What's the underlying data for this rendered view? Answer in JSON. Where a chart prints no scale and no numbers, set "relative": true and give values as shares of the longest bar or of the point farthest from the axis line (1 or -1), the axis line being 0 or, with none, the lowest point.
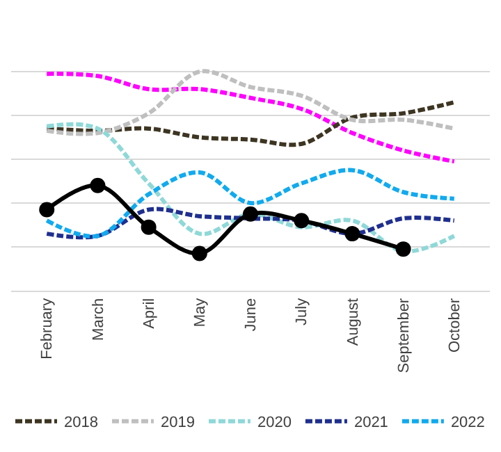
{
  "chart_data": {
    "type": "line",
    "relative": true,
    "grid": "y",
    "legend": "bottom",
    "categories": [
      "February",
      "March",
      "April",
      "May",
      "June",
      "July",
      "August",
      "September",
      "October"
    ],
    "series": [
      {
        "color": "#ff00ff",
        "line_style": "dashed",
        "marker": "none",
        "values": [
          0.99,
          0.98,
          0.92,
          0.92,
          0.88,
          0.83,
          0.72,
          0.64,
          0.59
        ]
      },
      {
        "name": "2018",
        "color": "#3d3522",
        "line_style": "dashed",
        "marker": "none",
        "values": [
          0.74,
          0.73,
          0.74,
          0.7,
          0.69,
          0.67,
          0.79,
          0.81,
          0.86
        ]
      },
      {
        "name": "2019",
        "color": "#bfbfbf",
        "line_style": "dashed",
        "marker": "none",
        "values": [
          0.73,
          0.72,
          0.81,
          1.0,
          0.93,
          0.89,
          0.78,
          0.78,
          0.74
        ]
      },
      {
        "name": "2020",
        "color": "#8fd8d8",
        "line_style": "dashed",
        "marker": "none",
        "values": [
          0.75,
          0.74,
          0.49,
          0.26,
          0.35,
          0.29,
          0.32,
          0.18,
          0.25
        ]
      },
      {
        "name": "2021",
        "color": "#1f2f8f",
        "line_style": "dashed",
        "marker": "none",
        "values": [
          0.26,
          0.25,
          0.37,
          0.34,
          0.33,
          0.32,
          0.26,
          0.33,
          0.32
        ]
      },
      {
        "name": "2022",
        "color": "#11aaee",
        "line_style": "dashed",
        "marker": "none",
        "values": [
          0.32,
          0.25,
          0.44,
          0.54,
          0.4,
          0.49,
          0.55,
          0.45,
          0.42
        ]
      },
      {
        "color": "#000000",
        "line_style": "solid",
        "marker": "circle",
        "values": [
          0.37,
          0.48,
          0.29,
          0.17,
          0.35,
          0.32,
          0.26,
          0.19,
          null
        ]
      }
    ]
  }
}
